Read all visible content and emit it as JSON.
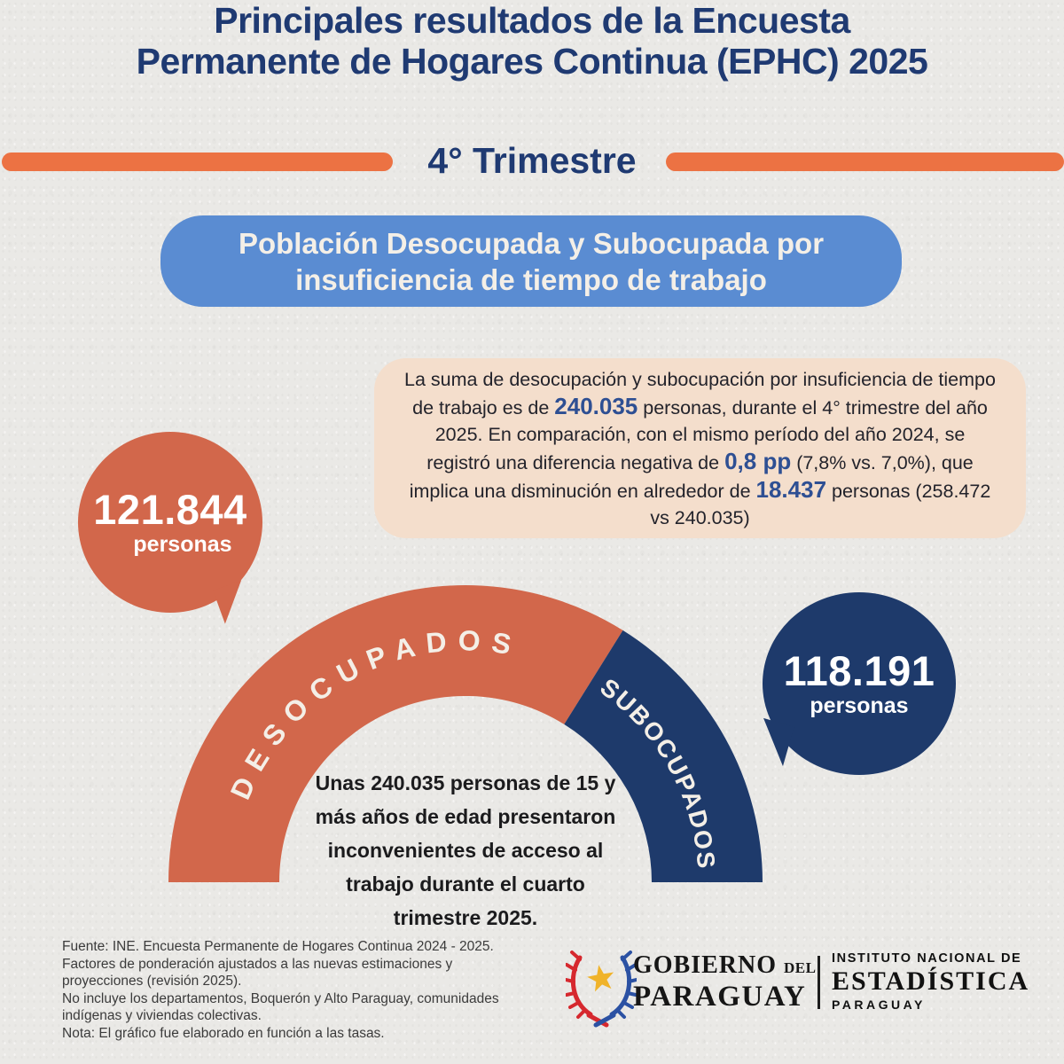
{
  "colors": {
    "background": "#eae9e6",
    "title_navy": "#1f3a72",
    "accent_orange": "#ec7243",
    "banner_blue": "#5a8cd2",
    "banner_text": "#f4efe7",
    "summary_bg": "#f4decc",
    "summary_text": "#23232b",
    "emphasis_blue": "#2e4f93",
    "terracotta": "#d2674b",
    "navy": "#1e3a6b",
    "gauge_text": "#1b1b1d",
    "footer_text": "#3b3b3b"
  },
  "header": {
    "title_line1": "Principales resultados de la Encuesta",
    "title_line2": "Permanente de Hogares Continua (EPHC) 2025",
    "subtitle": "4° Trimestre"
  },
  "banner": {
    "line1": "Población Desocupada y Subocupada por",
    "line2": "insuficiencia de tiempo de trabajo"
  },
  "summary": {
    "segments": [
      {
        "text": "La suma de desocupación y subocupación por insuficiencia de tiempo de trabajo es de ",
        "em": false
      },
      {
        "text": "240.035",
        "em": true
      },
      {
        "text": " personas, durante el 4° trimestre del año 2025. En comparación, con el mismo período del año 2024, se registró una diferencia negativa de ",
        "em": false
      },
      {
        "text": "0,8 pp",
        "em": true
      },
      {
        "text": " (7,8% vs. 7,0%), que implica una disminución en alrededor de ",
        "em": false
      },
      {
        "text": "18.437",
        "em": true
      },
      {
        "text": " personas (258.472  vs 240.035)",
        "em": false
      }
    ]
  },
  "bubble_desocupados": {
    "value": "121.844",
    "unit": "personas"
  },
  "bubble_subocupados": {
    "value": "118.191",
    "unit": "personas"
  },
  "gauge": {
    "left_label": "DESOCUPADOS",
    "right_label": "SUBOCUPADOS",
    "center_lines": [
      "Unas 240.035 personas de 15 y",
      "más años de edad presentaron",
      "inconvenientes de acceso al",
      "trabajo durante el cuarto",
      "trimestre 2025."
    ]
  },
  "chart_data": {
    "type": "pie",
    "subtype": "semicircle_donut_gauge",
    "categories": [
      "Desocupados",
      "Subocupados"
    ],
    "values": [
      121844,
      118191
    ],
    "value_labels": [
      "121.844 personas",
      "118.191 personas"
    ],
    "colors": [
      "#d2674b",
      "#1e3a6b"
    ],
    "total": 240035,
    "total_label": "240.035",
    "segment_angles_deg": [
      122,
      58
    ],
    "rates_compared": "7,8% vs. 7,0% (diferencia de 0,8 pp)",
    "note": "El gráfico fue elaborado en función a las tasas"
  },
  "footer": {
    "notes": [
      "Fuente: INE. Encuesta Permanente de Hogares Continua 2024 - 2025.",
      "Factores de ponderación ajustados a las nuevas estimaciones y",
      "proyecciones (revisión 2025).",
      "No incluye los departamentos, Boquerón y Alto Paraguay, comunidades",
      "indígenas y viviendas colectivas.",
      "Nota: El gráfico fue elaborado en función a las tasas."
    ],
    "gobierno": {
      "word1": "GOBIERNO",
      "del": "DEL",
      "word2": "PARAGUAY"
    },
    "ine": {
      "line1": "INSTITUTO NACIONAL DE",
      "line2": "ESTADÍSTICA",
      "line3": "PARAGUAY"
    }
  }
}
